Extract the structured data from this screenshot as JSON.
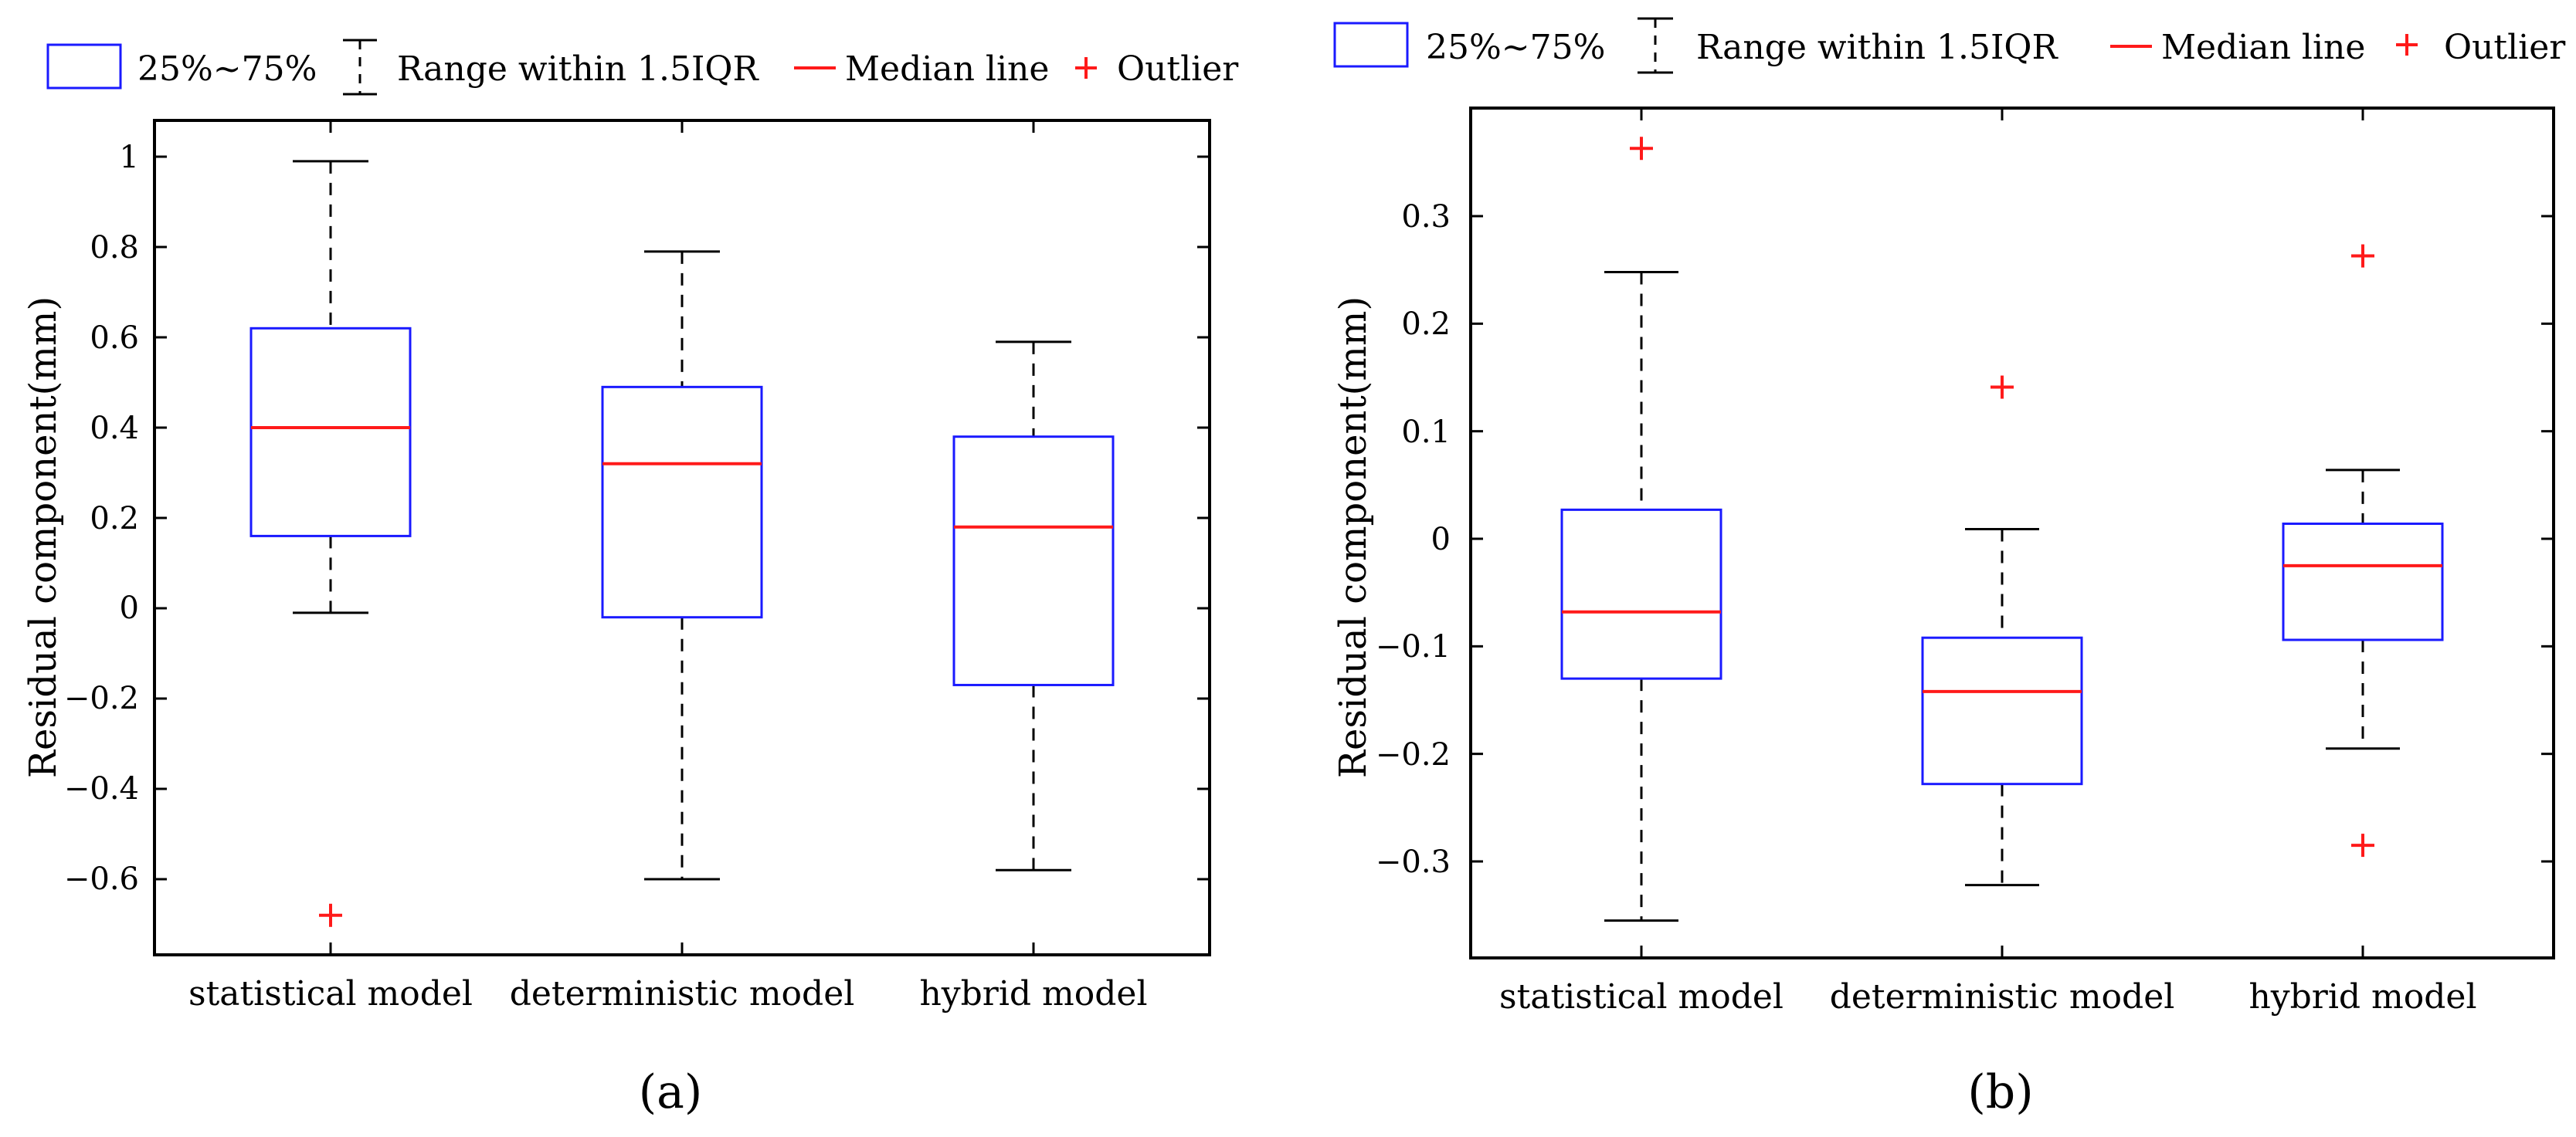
{
  "chart_data": [
    {
      "type": "boxplot",
      "panel_label": "(a)",
      "ylabel": "Residual component(mm)",
      "xlabel": "",
      "ylim": [
        -0.76,
        1.07
      ],
      "yticks": [
        1,
        0.8,
        0.6,
        0.4,
        0.2,
        0,
        -0.2,
        -0.4,
        -0.6
      ],
      "ytick_labels": [
        "1",
        "0.8",
        "0.6",
        "0.4",
        "0.2",
        "0",
        "−0.2",
        "−0.4",
        "−0.6"
      ],
      "categories": [
        "statistical model",
        "deterministic model",
        "hybrid model"
      ],
      "boxes": [
        {
          "name": "statistical model",
          "whisker_low": -0.01,
          "q1": 0.16,
          "median": 0.4,
          "q3": 0.62,
          "whisker_high": 0.99,
          "outliers": [
            -0.68
          ]
        },
        {
          "name": "deterministic model",
          "whisker_low": -0.6,
          "q1": -0.02,
          "median": 0.32,
          "q3": 0.49,
          "whisker_high": 0.79,
          "outliers": []
        },
        {
          "name": "hybrid model",
          "whisker_low": -0.58,
          "q1": -0.17,
          "median": 0.18,
          "q3": 0.38,
          "whisker_high": 0.59,
          "outliers": []
        }
      ],
      "legend": [
        "25%~75%",
        "Range within 1.5IQR",
        "Median line",
        "Outlier"
      ]
    },
    {
      "type": "boxplot",
      "panel_label": "(b)",
      "ylabel": "Residual component(mm)",
      "xlabel": "",
      "ylim": [
        -0.39,
        0.4
      ],
      "yticks": [
        0.3,
        0.2,
        0.1,
        0,
        -0.1,
        -0.2,
        -0.3
      ],
      "ytick_labels": [
        "0.3",
        "0.2",
        "0.1",
        "0",
        "−0.1",
        "−0.2",
        "−0.3"
      ],
      "categories": [
        "statistical model",
        "deterministic model",
        "hybrid model"
      ],
      "boxes": [
        {
          "name": "statistical model",
          "whisker_low": -0.355,
          "q1": -0.13,
          "median": -0.068,
          "q3": 0.027,
          "whisker_high": 0.248,
          "outliers": [
            0.363
          ]
        },
        {
          "name": "deterministic model",
          "whisker_low": -0.322,
          "q1": -0.228,
          "median": -0.142,
          "q3": -0.092,
          "whisker_high": 0.009,
          "outliers": [
            0.141
          ]
        },
        {
          "name": "hybrid model",
          "whisker_low": -0.195,
          "q1": -0.094,
          "median": -0.025,
          "q3": 0.014,
          "whisker_high": 0.064,
          "outliers": [
            0.263,
            -0.285
          ]
        }
      ],
      "legend": [
        "25%~75%",
        "Range within 1.5IQR",
        "Median line",
        "Outlier"
      ]
    }
  ],
  "colors": {
    "box": "#1a1aff",
    "median": "#ff1a1a",
    "outlier": "#ff1a1a",
    "whisker": "#000000",
    "axis": "#000000"
  }
}
